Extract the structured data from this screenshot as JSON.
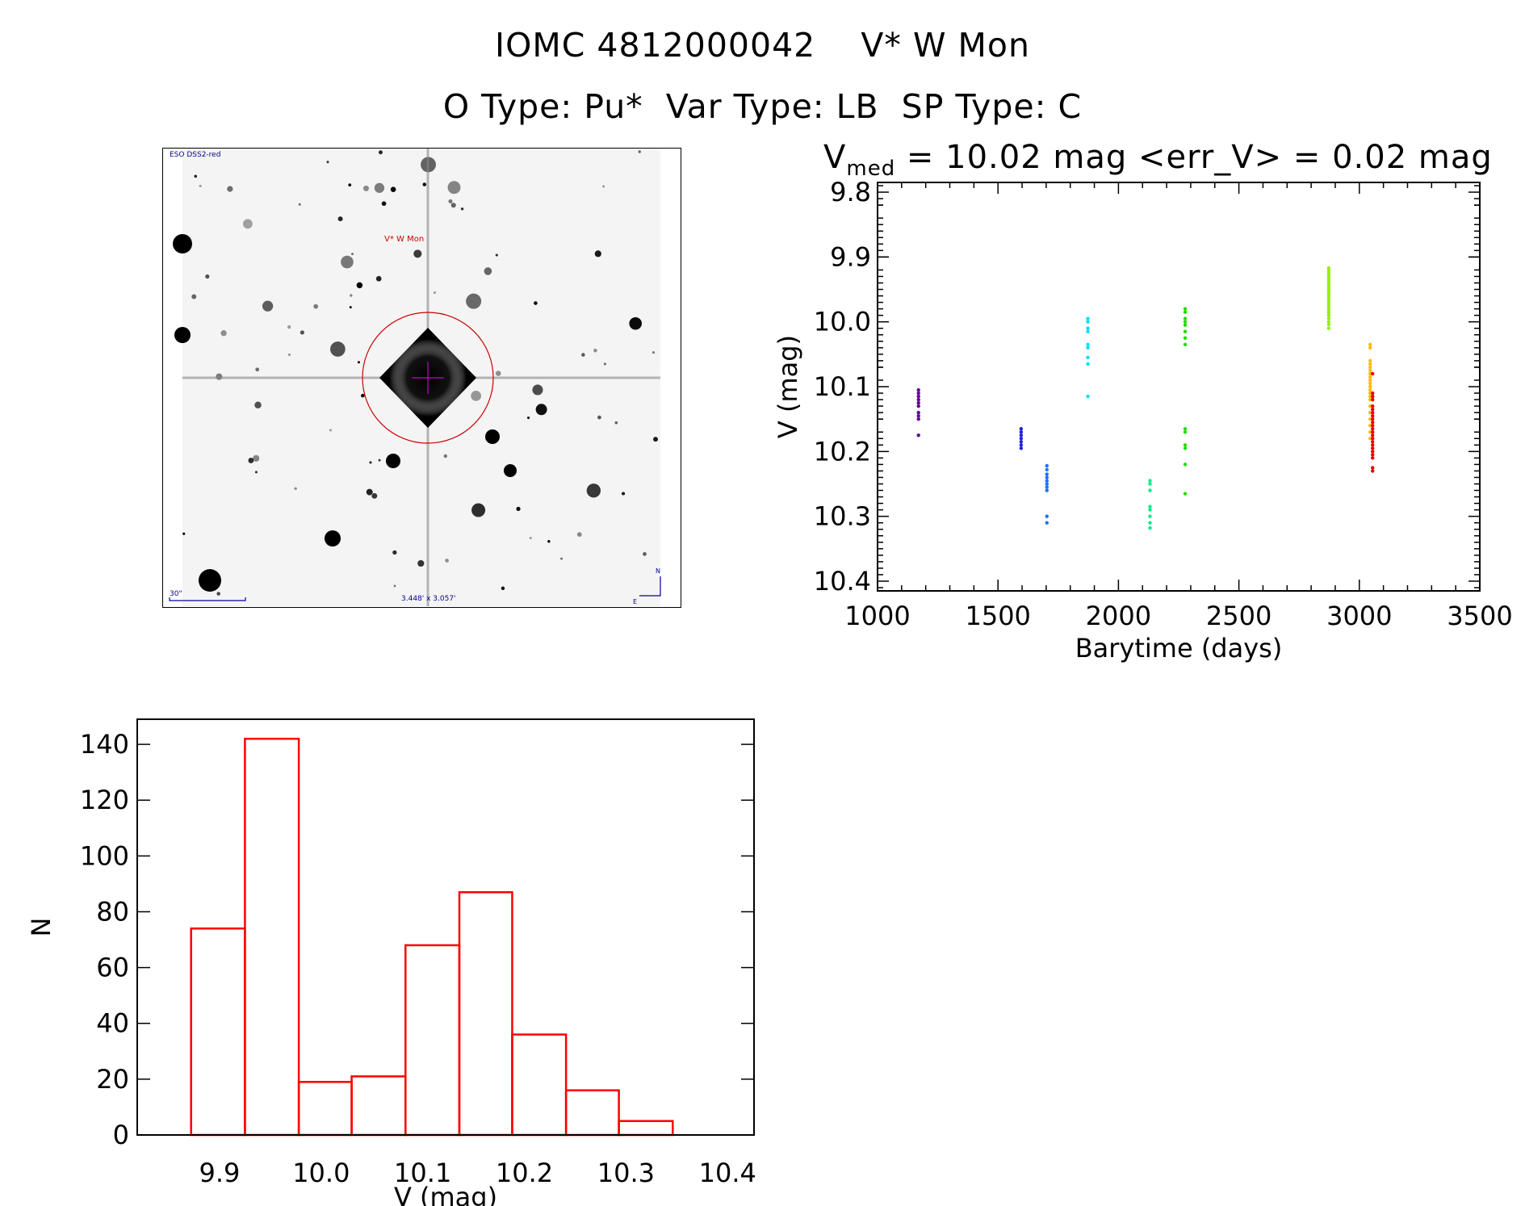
{
  "header": {
    "line1": "IOMC 4812000042    V* W Mon",
    "line2": "O Type: Pu*  Var Type: LB  SP Type: C",
    "vmed_label": "V",
    "vmed_sub": "med",
    "vmed_text": " = 10.02 mag <err_V> = 0.02 mag"
  },
  "thumbnail": {
    "survey_label": "ESO DSS2-red",
    "target_label": "V* W Mon",
    "scale_label": "30\"",
    "fov_label": "3.448' x 3.057'",
    "north_label": "N",
    "east_label": "E",
    "marker_color": "#cc0000",
    "label_color": "#000099"
  },
  "chart_data": [
    {
      "type": "scatter",
      "xlabel": "Barytime (days)",
      "ylabel": "V (mag)",
      "xlim": [
        1000,
        3500
      ],
      "ylim": [
        10.415,
        9.785
      ],
      "y_inverted": true,
      "x_ticks": [
        "1000",
        "1500",
        "2000",
        "2500",
        "3000",
        "3500"
      ],
      "y_ticks": [
        "9.8",
        "9.9",
        "10.0",
        "10.1",
        "10.2",
        "10.3",
        "10.4"
      ],
      "grid": false,
      "series": [
        {
          "color": "#660099",
          "x": 1170,
          "y": [
            10.105,
            10.11,
            10.115,
            10.12,
            10.125,
            10.13,
            10.14,
            10.145,
            10.15,
            10.175
          ]
        },
        {
          "color": "#2222dd",
          "x": 1596,
          "y": [
            10.165,
            10.17,
            10.175,
            10.18,
            10.185,
            10.19,
            10.195
          ]
        },
        {
          "color": "#1a73ff",
          "x": 1703,
          "y": [
            10.222,
            10.228,
            10.235,
            10.24,
            10.245,
            10.25,
            10.255,
            10.26,
            10.3,
            10.31
          ]
        },
        {
          "color": "#00ddff",
          "x": 1873,
          "y": [
            9.995,
            10.0,
            10.01,
            10.015,
            10.035,
            10.04,
            10.055,
            10.065,
            10.115
          ]
        },
        {
          "color": "#00ee88",
          "x": 2131,
          "y": [
            10.245,
            10.25,
            10.26,
            10.285,
            10.29,
            10.3,
            10.31,
            10.318
          ]
        },
        {
          "color": "#22dd00",
          "x": 2277,
          "y": [
            9.98,
            9.985,
            9.995,
            10.0,
            10.005,
            10.015,
            10.025,
            10.035,
            10.165,
            10.17,
            10.19,
            10.195,
            10.22,
            10.265
          ]
        },
        {
          "color": "#99ee00",
          "x": 2873,
          "y": [
            9.917,
            9.92,
            9.924,
            9.928,
            9.932,
            9.936,
            9.94,
            9.944,
            9.948,
            9.952,
            9.955,
            9.958,
            9.962,
            9.966,
            9.97,
            9.974,
            9.978,
            9.982,
            9.986,
            9.99,
            9.995,
            10.0,
            10.004,
            10.01
          ]
        },
        {
          "color": "#ffbb00",
          "x": 3045,
          "y": [
            10.035,
            10.04,
            10.06,
            10.065,
            10.07,
            10.075,
            10.08,
            10.085,
            10.09,
            10.095,
            10.1,
            10.105,
            10.11,
            10.115,
            10.12,
            10.13,
            10.14,
            10.15,
            10.16,
            10.17,
            10.18
          ]
        },
        {
          "color": "#ee0000",
          "x": 3055,
          "y": [
            10.08,
            10.11,
            10.115,
            10.12,
            10.13,
            10.135,
            10.14,
            10.145,
            10.15,
            10.155,
            10.16,
            10.165,
            10.17,
            10.175,
            10.18,
            10.185,
            10.19,
            10.195,
            10.2,
            10.205,
            10.21,
            10.225,
            10.23
          ]
        }
      ]
    },
    {
      "type": "bar",
      "subtype": "histogram",
      "xlabel": "V (mag)",
      "ylabel": "N",
      "xlim": [
        9.819,
        10.426
      ],
      "ylim": [
        0,
        149
      ],
      "x_ticks": [
        "9.9",
        "10.0",
        "10.1",
        "10.2",
        "10.3",
        "10.4"
      ],
      "y_ticks": [
        "0",
        "20",
        "40",
        "60",
        "80",
        "100",
        "120",
        "140"
      ],
      "bin_edges": [
        9.872,
        9.925,
        9.978,
        10.03,
        10.083,
        10.136,
        10.188,
        10.241,
        10.293,
        10.346
      ],
      "values": [
        74,
        142,
        19,
        21,
        68,
        87,
        36,
        16,
        5
      ],
      "color": "#ff0000",
      "grid": false
    }
  ]
}
